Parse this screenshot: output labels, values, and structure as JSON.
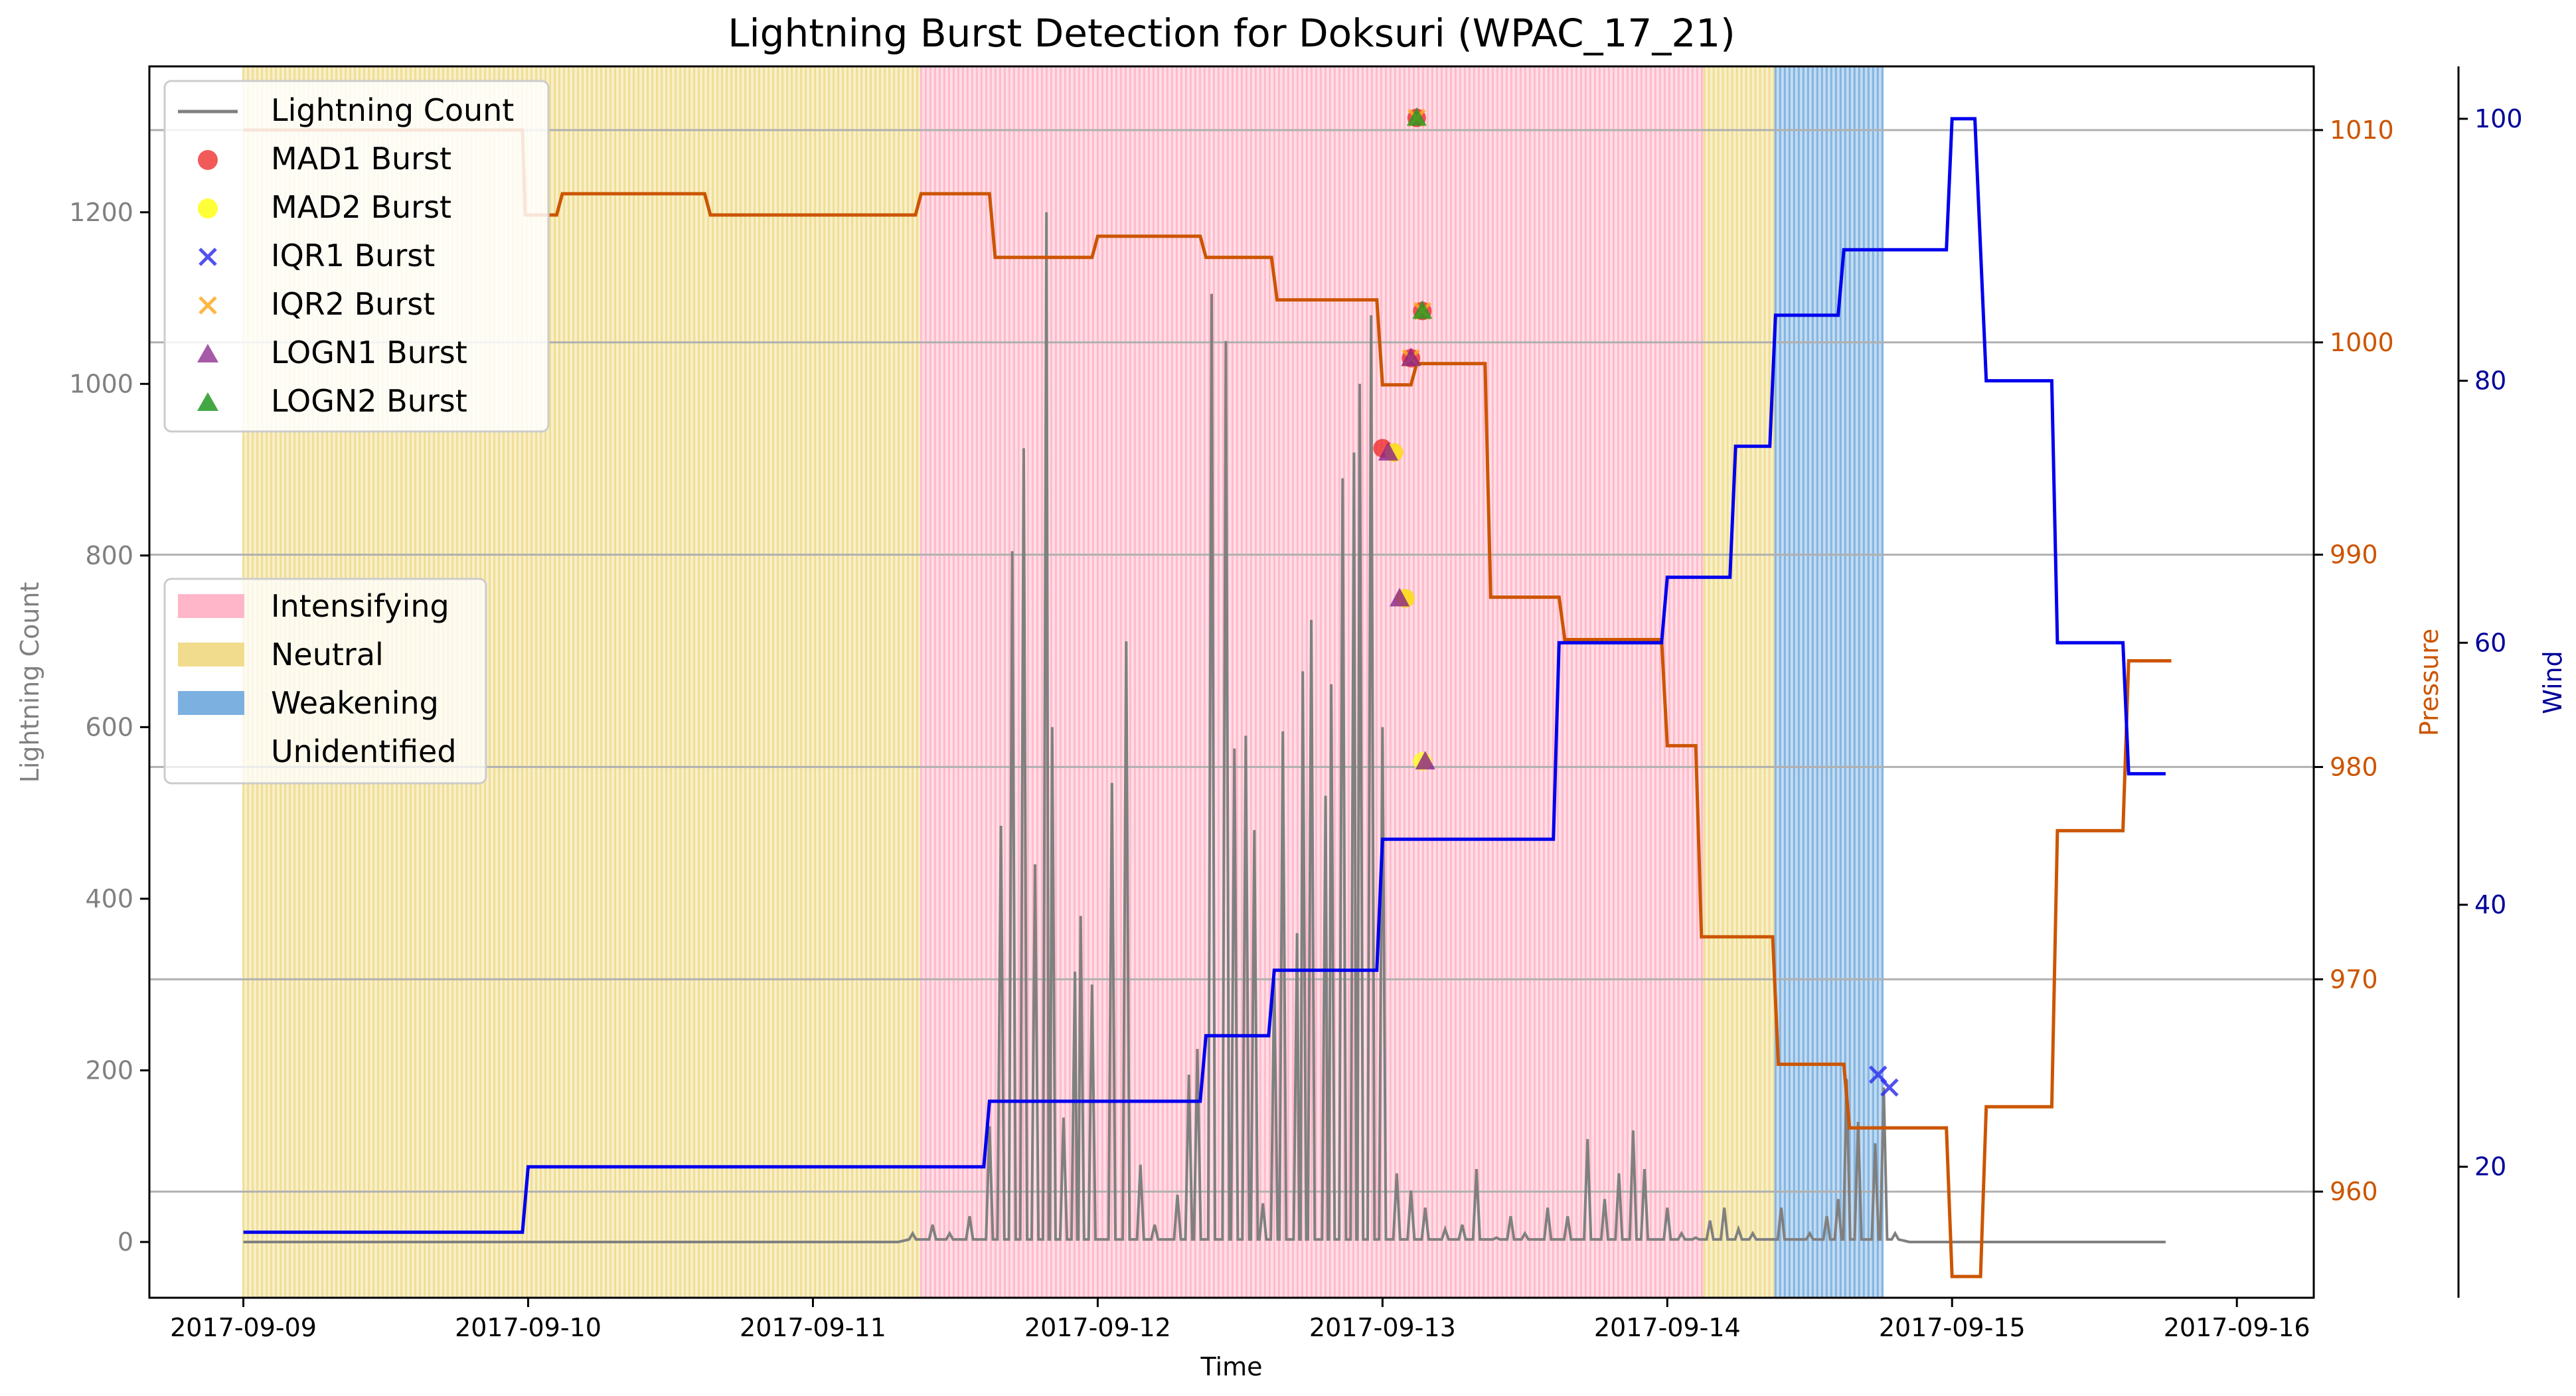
{
  "chart_data": {
    "type": "line",
    "title": "Lightning Burst Detection for Doksuri (WPAC_17_21)",
    "xlabel": "Time",
    "ylabel_left": "Lightning Count",
    "ylabel_right1": "Pressure",
    "ylabel_right2": "Wind",
    "x_ticks": [
      "2017-09-09",
      "2017-09-10",
      "2017-09-11",
      "2017-09-12",
      "2017-09-13",
      "2017-09-14",
      "2017-09-15",
      "2017-09-16"
    ],
    "xlim_days": [
      -0.33,
      7.27
    ],
    "y_left": {
      "lim": [
        -65,
        1370
      ],
      "ticks": [
        0,
        200,
        400,
        600,
        800,
        1000,
        1200
      ]
    },
    "y_pressure": {
      "lim": [
        955,
        1013
      ],
      "ticks": [
        960,
        970,
        980,
        990,
        1000,
        1010
      ]
    },
    "y_wind": {
      "lim": [
        10,
        104
      ],
      "ticks": [
        20,
        40,
        60,
        80,
        100
      ]
    },
    "grid": "horizontal lines from pressure axis",
    "colors": {
      "lightning": "#808080",
      "pressure": "#cc5500",
      "wind": "#0000ee",
      "intensifying": "#ffb6c8",
      "neutral": "#f0dc8c",
      "weakening": "#7bb0e0",
      "mad1": "#ee2222",
      "mad2": "#ffff22",
      "iqr1": "#3333ee",
      "iqr2": "#ffaa22",
      "logn1": "#882288",
      "logn2": "#229922",
      "pressure_axis_color": "#cc5500",
      "wind_axis_color": "#000099"
    },
    "phases": [
      {
        "label": "Neutral",
        "start": 0.0,
        "end": 2.38
      },
      {
        "label": "Intensifying",
        "start": 2.38,
        "end": 5.13
      },
      {
        "label": "Neutral",
        "start": 5.13,
        "end": 5.38
      },
      {
        "label": "Weakening",
        "start": 5.38,
        "end": 5.76
      }
    ],
    "pressure_series": {
      "name": "Pressure",
      "x": [
        0,
        0.98,
        0.99,
        1.1,
        1.12,
        1.62,
        1.64,
        2.36,
        2.38,
        2.62,
        2.64,
        2.98,
        3.0,
        3.36,
        3.38,
        3.61,
        3.63,
        3.98,
        4.0,
        4.1,
        4.12,
        4.36,
        4.38,
        4.62,
        4.64,
        4.98,
        5.0,
        5.1,
        5.12,
        5.37,
        5.39,
        5.62,
        5.64,
        5.98,
        6.0,
        6.1,
        6.12,
        6.35,
        6.37,
        6.6,
        6.62,
        6.75,
        6.77
      ],
      "y": [
        1010,
        1010,
        1006,
        1006,
        1007,
        1007,
        1006,
        1006,
        1007,
        1007,
        1004,
        1004,
        1005,
        1005,
        1004,
        1004,
        1002,
        1002,
        998,
        998,
        999,
        999,
        988,
        988,
        986,
        986,
        981,
        981,
        972,
        972,
        966,
        966,
        963,
        963,
        956,
        956,
        964,
        964,
        977,
        977,
        985,
        985,
        985
      ]
    },
    "wind_series": {
      "name": "Wind",
      "x": [
        0,
        0.98,
        1.0,
        2.6,
        2.62,
        3.36,
        3.38,
        3.6,
        3.62,
        3.98,
        4.0,
        4.6,
        4.62,
        4.98,
        5.0,
        5.22,
        5.24,
        5.36,
        5.38,
        5.6,
        5.62,
        5.98,
        6.0,
        6.08,
        6.12,
        6.35,
        6.37,
        6.6,
        6.62,
        6.75
      ],
      "y": [
        15,
        15,
        20,
        20,
        25,
        25,
        30,
        30,
        35,
        35,
        45,
        45,
        60,
        60,
        65,
        65,
        75,
        75,
        85,
        85,
        90,
        90,
        100,
        100,
        80,
        80,
        60,
        60,
        50,
        50
      ]
    },
    "lightning_peaks": {
      "name": "Lightning Count",
      "x": [
        2.35,
        2.42,
        2.48,
        2.55,
        2.62,
        2.66,
        2.7,
        2.74,
        2.78,
        2.82,
        2.84,
        2.88,
        2.92,
        2.94,
        2.98,
        3.05,
        3.1,
        3.15,
        3.2,
        3.28,
        3.32,
        3.35,
        3.4,
        3.45,
        3.48,
        3.52,
        3.55,
        3.58,
        3.62,
        3.65,
        3.7,
        3.72,
        3.75,
        3.8,
        3.82,
        3.86,
        3.9,
        3.92,
        3.96,
        4.0,
        4.05,
        4.1,
        4.15,
        4.22,
        4.28,
        4.33,
        4.4,
        4.45,
        4.5,
        4.58,
        4.65,
        4.72,
        4.78,
        4.83,
        4.88,
        4.92,
        5.0,
        5.05,
        5.1,
        5.15,
        5.2,
        5.25,
        5.3,
        5.4,
        5.5,
        5.56,
        5.6,
        5.63,
        5.67,
        5.73,
        5.76,
        5.8
      ],
      "y": [
        10,
        20,
        10,
        30,
        135,
        485,
        805,
        925,
        440,
        1200,
        600,
        145,
        315,
        380,
        300,
        535,
        700,
        90,
        20,
        55,
        195,
        225,
        1105,
        1050,
        575,
        590,
        480,
        45,
        305,
        595,
        360,
        665,
        725,
        520,
        650,
        890,
        920,
        1000,
        1080,
        600,
        80,
        60,
        40,
        15,
        20,
        85,
        5,
        30,
        10,
        40,
        30,
        120,
        50,
        80,
        130,
        85,
        40,
        10,
        5,
        25,
        40,
        15,
        10,
        40,
        10,
        30,
        50,
        190,
        140,
        115,
        180,
        10
      ]
    },
    "bursts": {
      "mad1": {
        "name": "MAD1 Burst",
        "x": [
          4.0,
          4.04,
          4.08,
          4.1,
          4.12,
          4.14
        ],
        "y": [
          925,
          920,
          750,
          1030,
          1310,
          1085
        ]
      },
      "mad2": {
        "name": "MAD2 Burst",
        "x": [
          4.04,
          4.08,
          4.14
        ],
        "y": [
          920,
          750,
          560
        ]
      },
      "iqr1": {
        "name": "IQR1 Burst",
        "x": [
          5.74,
          5.78
        ],
        "y": [
          195,
          180
        ]
      },
      "iqr2": {
        "name": "IQR2 Burst",
        "x": [
          4.1,
          4.12,
          4.14
        ],
        "y": [
          1030,
          1310,
          1085
        ]
      },
      "logn1": {
        "name": "LOGN1 Burst",
        "x": [
          4.02,
          4.06,
          4.1,
          4.15
        ],
        "y": [
          920,
          750,
          1030,
          560
        ]
      },
      "logn2": {
        "name": "LOGN2 Burst",
        "x": [
          4.12,
          4.14
        ],
        "y": [
          1310,
          1085
        ]
      }
    },
    "legend1": {
      "placement": "top-left",
      "entries": [
        "Lightning Count",
        "MAD1 Burst",
        "MAD2 Burst",
        "IQR1 Burst",
        "IQR2 Burst",
        "LOGN1 Burst",
        "LOGN2 Burst"
      ]
    },
    "legend2": {
      "placement": "center-left",
      "entries": [
        "Intensifying",
        "Neutral",
        "Weakening",
        "Unidentified"
      ]
    }
  }
}
